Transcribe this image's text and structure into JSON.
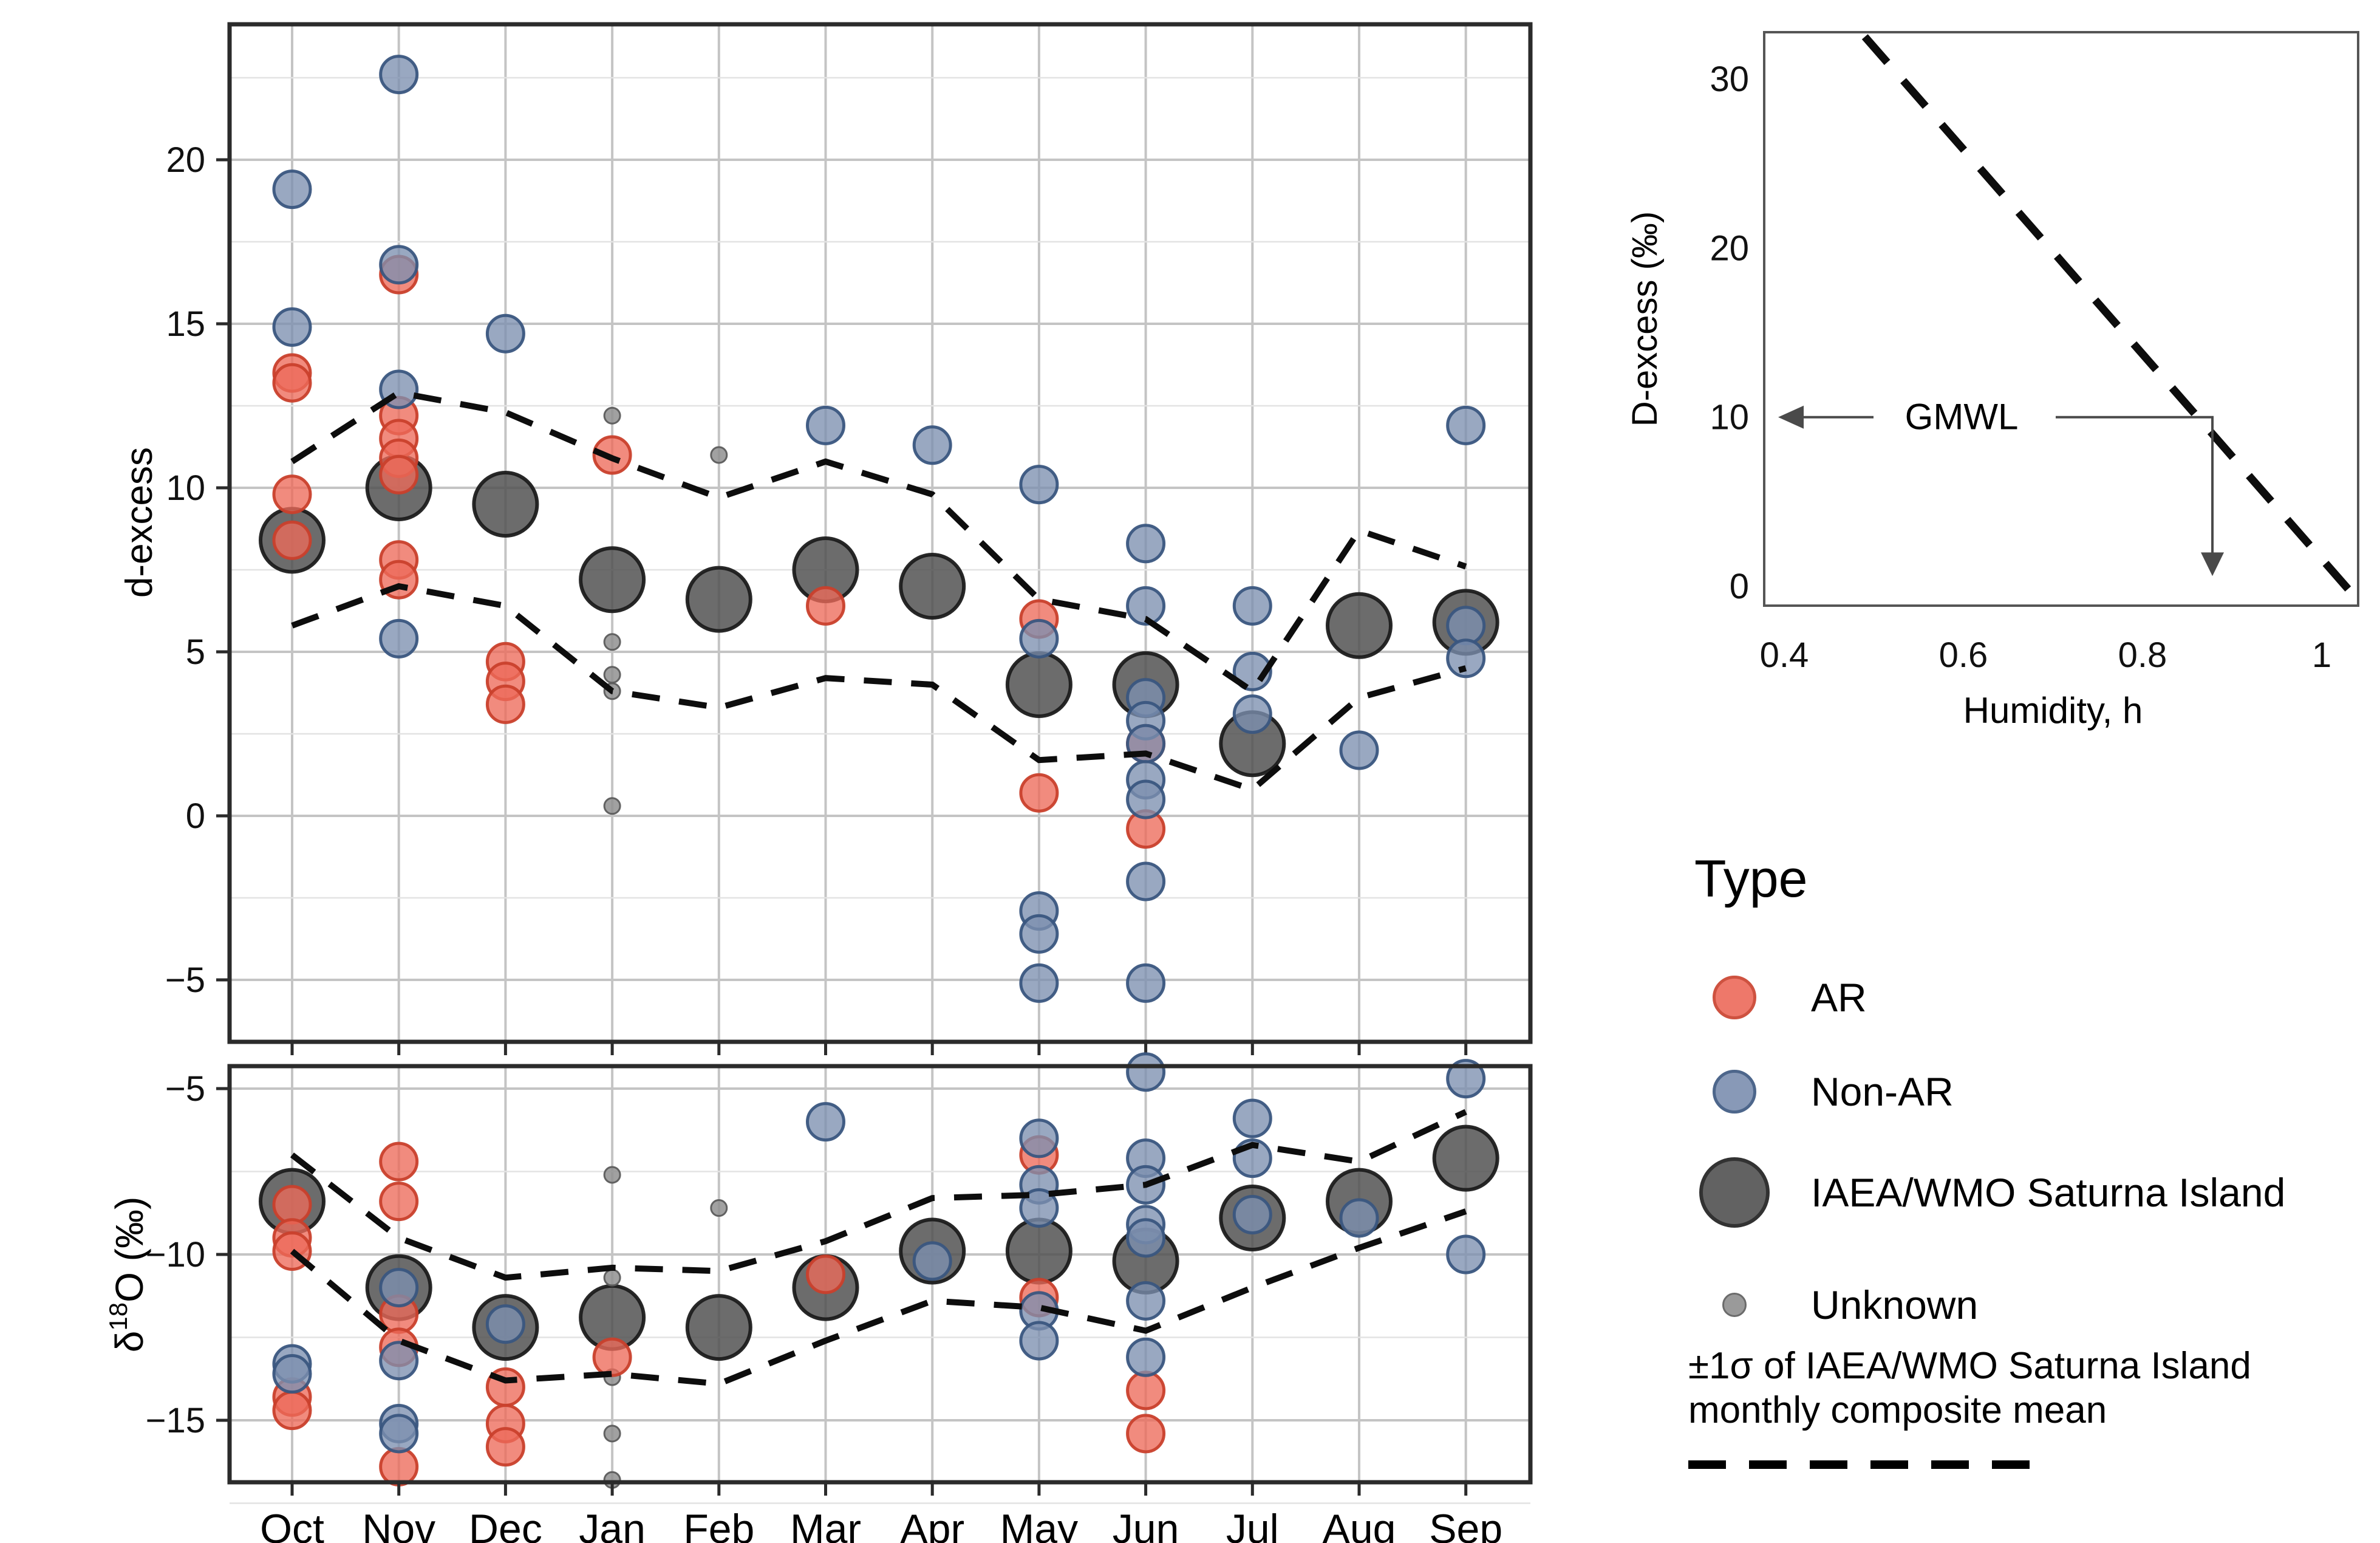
{
  "colors": {
    "ar_fill": "#ED6A5A",
    "ar_stroke": "#C9402C",
    "nonar_fill": "#7C8FB0",
    "nonar_stroke": "#3A567F",
    "iaea_fill": "#525252",
    "iaea_stroke": "#1C1C1C",
    "unknown_fill": "#909090",
    "unknown_stroke": "#5C5C5C",
    "grid_major": "#C4C4C4",
    "grid_minor": "#E3E3E3",
    "border": "#2B2B2B",
    "dash_line": "#0D0D0D",
    "annotation_gray": "#4A4A4A"
  },
  "legend": {
    "title": "Type",
    "items": [
      {
        "label": "AR",
        "style": "ar"
      },
      {
        "label": "Non-AR",
        "style": "nonar"
      },
      {
        "label": "IAEA/WMO Saturna Island",
        "style": "iaea"
      },
      {
        "label": "Unknown",
        "style": "unknown"
      }
    ]
  },
  "note": {
    "line1": "±1σ of IAEA/WMO Saturna Island",
    "line2": "monthly composite mean"
  },
  "chart_data": [
    {
      "type": "scatter",
      "panel": "d-excess-by-month",
      "ylabel": "d-excess",
      "categories": [
        "Oct",
        "Nov",
        "Dec",
        "Jan",
        "Feb",
        "Mar",
        "Apr",
        "May",
        "Jun",
        "Jul",
        "Aug",
        "Sep"
      ],
      "yticks": {
        "labels": [
          "20",
          "15",
          "10",
          "5",
          "0",
          "−5"
        ],
        "values": [
          20,
          15,
          10,
          5,
          0,
          -5
        ]
      },
      "yminor": [
        22.5,
        17.5,
        12.5,
        7.5,
        2.5,
        -2.5
      ],
      "ylim": [
        -6.9,
        24.1
      ],
      "show_month_labels": false,
      "series": [
        {
          "name": "IAEA/WMO Saturna Island",
          "style": "iaea",
          "points": [
            [
              0,
              8.4
            ],
            [
              1,
              10.0
            ],
            [
              2,
              9.5
            ],
            [
              3,
              7.2
            ],
            [
              4,
              6.6
            ],
            [
              5,
              7.5
            ],
            [
              6,
              7.0
            ],
            [
              7,
              4.0
            ],
            [
              8,
              4.0
            ],
            [
              9,
              2.2
            ],
            [
              10,
              5.8
            ],
            [
              11,
              5.9
            ]
          ]
        },
        {
          "name": "Unknown",
          "style": "unknown",
          "points": [
            [
              3,
              12.2
            ],
            [
              3,
              5.3
            ],
            [
              3,
              4.3
            ],
            [
              3,
              3.8
            ],
            [
              3,
              0.3
            ],
            [
              4,
              11.0
            ]
          ]
        },
        {
          "name": "AR",
          "style": "ar",
          "points": [
            [
              0,
              13.5
            ],
            [
              0,
              13.2
            ],
            [
              0,
              9.8
            ],
            [
              0,
              8.4
            ],
            [
              1,
              16.5
            ],
            [
              1,
              12.2
            ],
            [
              1,
              11.5
            ],
            [
              1,
              10.9
            ],
            [
              1,
              10.4
            ],
            [
              1,
              7.8
            ],
            [
              1,
              7.2
            ],
            [
              2,
              4.7
            ],
            [
              2,
              4.1
            ],
            [
              2,
              3.4
            ],
            [
              3,
              11.0
            ],
            [
              5,
              6.4
            ],
            [
              7,
              6.0
            ],
            [
              7,
              0.7
            ],
            [
              8,
              2.2
            ],
            [
              8,
              -0.4
            ]
          ]
        },
        {
          "name": "Non-AR",
          "style": "nonar",
          "points": [
            [
              0,
              19.1
            ],
            [
              0,
              14.9
            ],
            [
              1,
              22.6
            ],
            [
              1,
              16.8
            ],
            [
              1,
              13.0
            ],
            [
              1,
              5.4
            ],
            [
              2,
              14.7
            ],
            [
              5,
              11.9
            ],
            [
              6,
              11.3
            ],
            [
              7,
              10.1
            ],
            [
              7,
              5.4
            ],
            [
              7,
              -2.9
            ],
            [
              7,
              -3.6
            ],
            [
              7,
              -5.1
            ],
            [
              8,
              8.3
            ],
            [
              8,
              6.4
            ],
            [
              8,
              3.6
            ],
            [
              8,
              2.9
            ],
            [
              8,
              2.2
            ],
            [
              8,
              1.1
            ],
            [
              8,
              0.5
            ],
            [
              8,
              -2.0
            ],
            [
              8,
              -5.1
            ],
            [
              9,
              6.4
            ],
            [
              9,
              4.4
            ],
            [
              9,
              3.1
            ],
            [
              10,
              2.0
            ],
            [
              11,
              11.9
            ],
            [
              11,
              5.8
            ],
            [
              11,
              4.8
            ]
          ]
        }
      ],
      "sigma_band": {
        "upper": [
          10.8,
          12.9,
          12.3,
          10.9,
          9.7,
          10.8,
          9.8,
          6.6,
          6.0,
          3.8,
          8.7,
          7.6
        ],
        "lower": [
          5.8,
          7.0,
          6.4,
          3.8,
          3.3,
          4.2,
          4.0,
          1.7,
          1.9,
          0.8,
          3.6,
          4.5
        ]
      }
    },
    {
      "type": "scatter",
      "panel": "delta18O-by-month",
      "ylabel_parts": {
        "prefix": "δ",
        "sup": "18",
        "suffix": "O (‰)"
      },
      "categories": [
        "Oct",
        "Nov",
        "Dec",
        "Jan",
        "Feb",
        "Mar",
        "Apr",
        "May",
        "Jun",
        "Jul",
        "Aug",
        "Sep"
      ],
      "yticks": {
        "labels": [
          "−5",
          "−10",
          "−15"
        ],
        "values": [
          -5,
          -10,
          -15
        ]
      },
      "yminor": [
        -7.5,
        -12.5,
        -17.5
      ],
      "ylim": [
        -16.9,
        -4.3
      ],
      "show_month_labels": true,
      "series": [
        {
          "name": "IAEA/WMO Saturna Island",
          "style": "iaea",
          "points": [
            [
              0,
              -8.4
            ],
            [
              1,
              -11.0
            ],
            [
              2,
              -12.2
            ],
            [
              3,
              -11.9
            ],
            [
              4,
              -12.2
            ],
            [
              5,
              -11.0
            ],
            [
              6,
              -9.9
            ],
            [
              7,
              -9.9
            ],
            [
              8,
              -10.2
            ],
            [
              9,
              -8.9
            ],
            [
              10,
              -8.4
            ],
            [
              11,
              -7.1
            ]
          ]
        },
        {
          "name": "Unknown",
          "style": "unknown",
          "points": [
            [
              3,
              -7.6
            ],
            [
              3,
              -10.7
            ],
            [
              3,
              -13.7
            ],
            [
              3,
              -15.4
            ],
            [
              3,
              -16.8
            ],
            [
              4,
              -8.6
            ]
          ]
        },
        {
          "name": "AR",
          "style": "ar",
          "points": [
            [
              0,
              -8.5
            ],
            [
              0,
              -9.5
            ],
            [
              0,
              -9.9
            ],
            [
              0,
              -14.3
            ],
            [
              0,
              -14.7
            ],
            [
              1,
              -7.2
            ],
            [
              1,
              -8.4
            ],
            [
              1,
              -11.8
            ],
            [
              1,
              -12.8
            ],
            [
              1,
              -16.4
            ],
            [
              2,
              -14.0
            ],
            [
              2,
              -15.1
            ],
            [
              2,
              -15.8
            ],
            [
              3,
              -13.1
            ],
            [
              5,
              -10.6
            ],
            [
              7,
              -7.0
            ],
            [
              7,
              -11.3
            ],
            [
              8,
              -14.1
            ],
            [
              8,
              -15.4
            ]
          ]
        },
        {
          "name": "Non-AR",
          "style": "nonar",
          "points": [
            [
              0,
              -13.3
            ],
            [
              0,
              -13.6
            ],
            [
              1,
              -11.0
            ],
            [
              1,
              -13.2
            ],
            [
              1,
              -15.1
            ],
            [
              1,
              -15.4
            ],
            [
              2,
              -12.1
            ],
            [
              5,
              -6.0
            ],
            [
              6,
              -10.2
            ],
            [
              7,
              -6.5
            ],
            [
              7,
              -7.9
            ],
            [
              7,
              -8.6
            ],
            [
              7,
              -11.7
            ],
            [
              7,
              -12.6
            ],
            [
              8,
              -4.5
            ],
            [
              8,
              -7.1
            ],
            [
              8,
              -7.9
            ],
            [
              8,
              -9.1
            ],
            [
              8,
              -9.5
            ],
            [
              8,
              -11.4
            ],
            [
              8,
              -13.1
            ],
            [
              9,
              -5.9
            ],
            [
              9,
              -7.1
            ],
            [
              9,
              -8.8
            ],
            [
              10,
              -8.9
            ],
            [
              11,
              -4.7
            ],
            [
              11,
              -10.0
            ]
          ]
        }
      ],
      "sigma_band": {
        "upper": [
          -7.0,
          -9.5,
          -10.7,
          -10.4,
          -10.5,
          -9.6,
          -8.3,
          -8.2,
          -7.9,
          -6.7,
          -7.2,
          -5.7
        ],
        "lower": [
          -9.9,
          -12.6,
          -13.8,
          -13.6,
          -13.9,
          -12.6,
          -11.4,
          -11.6,
          -12.3,
          -11.0,
          -9.8,
          -8.7
        ]
      }
    },
    {
      "type": "line",
      "panel": "d-excess-vs-humidity-inset",
      "xlabel": "Humidity, h",
      "ylabel": "D-excess (‰)",
      "xticks": {
        "labels": [
          "0.4",
          "0.6",
          "0.8",
          "1"
        ],
        "values": [
          0.4,
          0.6,
          0.8,
          1
        ]
      },
      "yticks": {
        "labels": [
          "0",
          "10",
          "20",
          "30"
        ],
        "values": [
          0,
          10,
          20,
          30
        ]
      },
      "xlim": [
        0.377,
        1.04
      ],
      "ylim": [
        0,
        32.8
      ],
      "closure_line": {
        "x1": 0.49,
        "y1": 32.5,
        "x2": 1.035,
        "y2": -0.5
      },
      "annotation": {
        "label": "GMWL",
        "y": 10,
        "elbow_x": 0.878
      }
    }
  ]
}
